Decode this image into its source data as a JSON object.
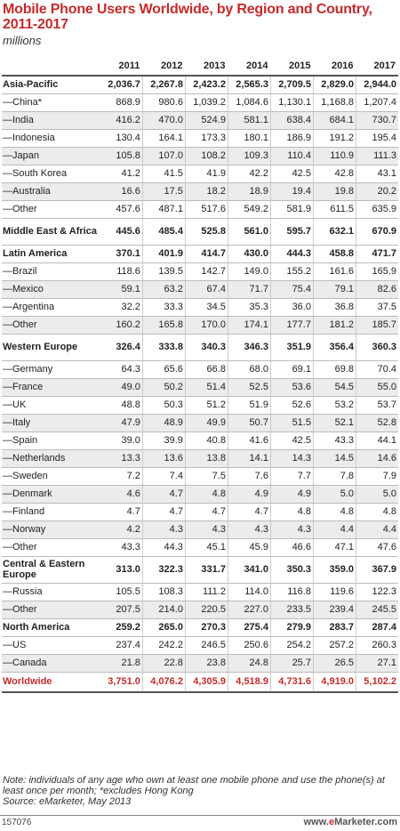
{
  "title": "Mobile Phone Users Worldwide, by Region and Country, 2011-2017",
  "subtitle": "millions",
  "chart_data": {
    "type": "table",
    "title": "Mobile Phone Users Worldwide, by Region and Country, 2011-2017",
    "subtitle": "millions",
    "columns": [
      "2011",
      "2012",
      "2013",
      "2014",
      "2015",
      "2016",
      "2017"
    ],
    "rows": [
      {
        "label": "Asia-Pacific",
        "kind": "group",
        "values": [
          "2,036.7",
          "2,267.8",
          "2,423.2",
          "2,565.3",
          "2,709.5",
          "2,829.0",
          "2,944.0"
        ]
      },
      {
        "label": "—China*",
        "kind": "sub",
        "values": [
          "868.9",
          "980.6",
          "1,039.2",
          "1,084.6",
          "1,130.1",
          "1,168.8",
          "1,207.4"
        ]
      },
      {
        "label": "—India",
        "kind": "sub",
        "values": [
          "416.2",
          "470.0",
          "524.9",
          "581.1",
          "638.4",
          "684.1",
          "730.7"
        ]
      },
      {
        "label": "—Indonesia",
        "kind": "sub",
        "values": [
          "130.4",
          "164.1",
          "173.3",
          "180.1",
          "186.9",
          "191.2",
          "195.4"
        ]
      },
      {
        "label": "—Japan",
        "kind": "sub",
        "values": [
          "105.8",
          "107.0",
          "108.2",
          "109.3",
          "110.4",
          "110.9",
          "111.3"
        ]
      },
      {
        "label": "—South Korea",
        "kind": "sub",
        "values": [
          "41.2",
          "41.5",
          "41.9",
          "42.2",
          "42.5",
          "42.8",
          "43.1"
        ]
      },
      {
        "label": "—Australia",
        "kind": "sub",
        "values": [
          "16.6",
          "17.5",
          "18.2",
          "18.9",
          "19.4",
          "19.8",
          "20.2"
        ]
      },
      {
        "label": "—Other",
        "kind": "sub",
        "values": [
          "457.6",
          "487.1",
          "517.6",
          "549.2",
          "581.9",
          "611.5",
          "635.9"
        ]
      },
      {
        "label": "Middle East & Africa",
        "kind": "group",
        "values": [
          "445.6",
          "485.4",
          "525.8",
          "561.0",
          "595.7",
          "632.1",
          "670.9"
        ]
      },
      {
        "label": "Latin America",
        "kind": "group",
        "values": [
          "370.1",
          "401.9",
          "414.7",
          "430.0",
          "444.3",
          "458.8",
          "471.7"
        ]
      },
      {
        "label": "—Brazil",
        "kind": "sub",
        "values": [
          "118.6",
          "139.5",
          "142.7",
          "149.0",
          "155.2",
          "161.6",
          "165.9"
        ]
      },
      {
        "label": "—Mexico",
        "kind": "sub",
        "values": [
          "59.1",
          "63.2",
          "67.4",
          "71.7",
          "75.4",
          "79.1",
          "82.6"
        ]
      },
      {
        "label": "—Argentina",
        "kind": "sub",
        "values": [
          "32.2",
          "33.3",
          "34.5",
          "35.3",
          "36.0",
          "36.8",
          "37.5"
        ]
      },
      {
        "label": "—Other",
        "kind": "sub",
        "values": [
          "160.2",
          "165.8",
          "170.0",
          "174.1",
          "177.7",
          "181.2",
          "185.7"
        ]
      },
      {
        "label": "Western Europe",
        "kind": "group",
        "values": [
          "326.4",
          "333.8",
          "340.3",
          "346.3",
          "351.9",
          "356.4",
          "360.3"
        ]
      },
      {
        "label": "—Germany",
        "kind": "sub",
        "values": [
          "64.3",
          "65.6",
          "66.8",
          "68.0",
          "69.1",
          "69.8",
          "70.4"
        ]
      },
      {
        "label": "—France",
        "kind": "sub",
        "values": [
          "49.0",
          "50.2",
          "51.4",
          "52.5",
          "53.6",
          "54.5",
          "55.0"
        ]
      },
      {
        "label": "—UK",
        "kind": "sub",
        "values": [
          "48.8",
          "50.3",
          "51.2",
          "51.9",
          "52.6",
          "53.2",
          "53.7"
        ]
      },
      {
        "label": "—Italy",
        "kind": "sub",
        "values": [
          "47.9",
          "48.9",
          "49.9",
          "50.7",
          "51.5",
          "52.1",
          "52.8"
        ]
      },
      {
        "label": "—Spain",
        "kind": "sub",
        "values": [
          "39.0",
          "39.9",
          "40.8",
          "41.6",
          "42.5",
          "43.3",
          "44.1"
        ]
      },
      {
        "label": "—Netherlands",
        "kind": "sub",
        "values": [
          "13.3",
          "13.6",
          "13.8",
          "14.1",
          "14.3",
          "14.5",
          "14.6"
        ]
      },
      {
        "label": "—Sweden",
        "kind": "sub",
        "values": [
          "7.2",
          "7.4",
          "7.5",
          "7.6",
          "7.7",
          "7.8",
          "7.9"
        ]
      },
      {
        "label": "—Denmark",
        "kind": "sub",
        "values": [
          "4.6",
          "4.7",
          "4.8",
          "4.9",
          "4.9",
          "5.0",
          "5.0"
        ]
      },
      {
        "label": "—Finland",
        "kind": "sub",
        "values": [
          "4.7",
          "4.7",
          "4.7",
          "4.7",
          "4.8",
          "4.8",
          "4.8"
        ]
      },
      {
        "label": "—Norway",
        "kind": "sub",
        "values": [
          "4.2",
          "4.3",
          "4.3",
          "4.3",
          "4.3",
          "4.4",
          "4.4"
        ]
      },
      {
        "label": "—Other",
        "kind": "sub",
        "values": [
          "43.3",
          "44.3",
          "45.1",
          "45.9",
          "46.6",
          "47.1",
          "47.6"
        ]
      },
      {
        "label": "Central & Eastern Europe",
        "kind": "group",
        "values": [
          "313.0",
          "322.3",
          "331.7",
          "341.0",
          "350.3",
          "359.0",
          "367.9"
        ]
      },
      {
        "label": "—Russia",
        "kind": "sub",
        "values": [
          "105.5",
          "108.3",
          "111.2",
          "114.0",
          "116.8",
          "119.6",
          "122.3"
        ]
      },
      {
        "label": "—Other",
        "kind": "sub",
        "values": [
          "207.5",
          "214.0",
          "220.5",
          "227.0",
          "233.5",
          "239.4",
          "245.5"
        ]
      },
      {
        "label": "North America",
        "kind": "group",
        "values": [
          "259.2",
          "265.0",
          "270.3",
          "275.4",
          "279.9",
          "283.7",
          "287.4"
        ]
      },
      {
        "label": "—US",
        "kind": "sub",
        "values": [
          "237.4",
          "242.2",
          "246.5",
          "250.6",
          "254.2",
          "257.2",
          "260.3"
        ]
      },
      {
        "label": "—Canada",
        "kind": "sub",
        "values": [
          "21.8",
          "22.8",
          "23.8",
          "24.8",
          "25.7",
          "26.5",
          "27.1"
        ]
      },
      {
        "label": "Worldwide",
        "kind": "total",
        "values": [
          "3,751.0",
          "4,076.2",
          "4,305.9",
          "4,518.9",
          "4,731.6",
          "4,919.0",
          "5,102.2"
        ]
      }
    ]
  },
  "note": "Note: individuals of any age who own at least one mobile phone and use the phone(s) at least once per month; *excludes Hong Kong",
  "source": "Source: eMarketer, May 2013",
  "chart_code": "157076",
  "brand": {
    "prefix": "www.",
    "e": "e",
    "rest": "Marketer.com"
  },
  "colors": {
    "accent": "#c62a2a",
    "alt_row": "#ececec"
  }
}
